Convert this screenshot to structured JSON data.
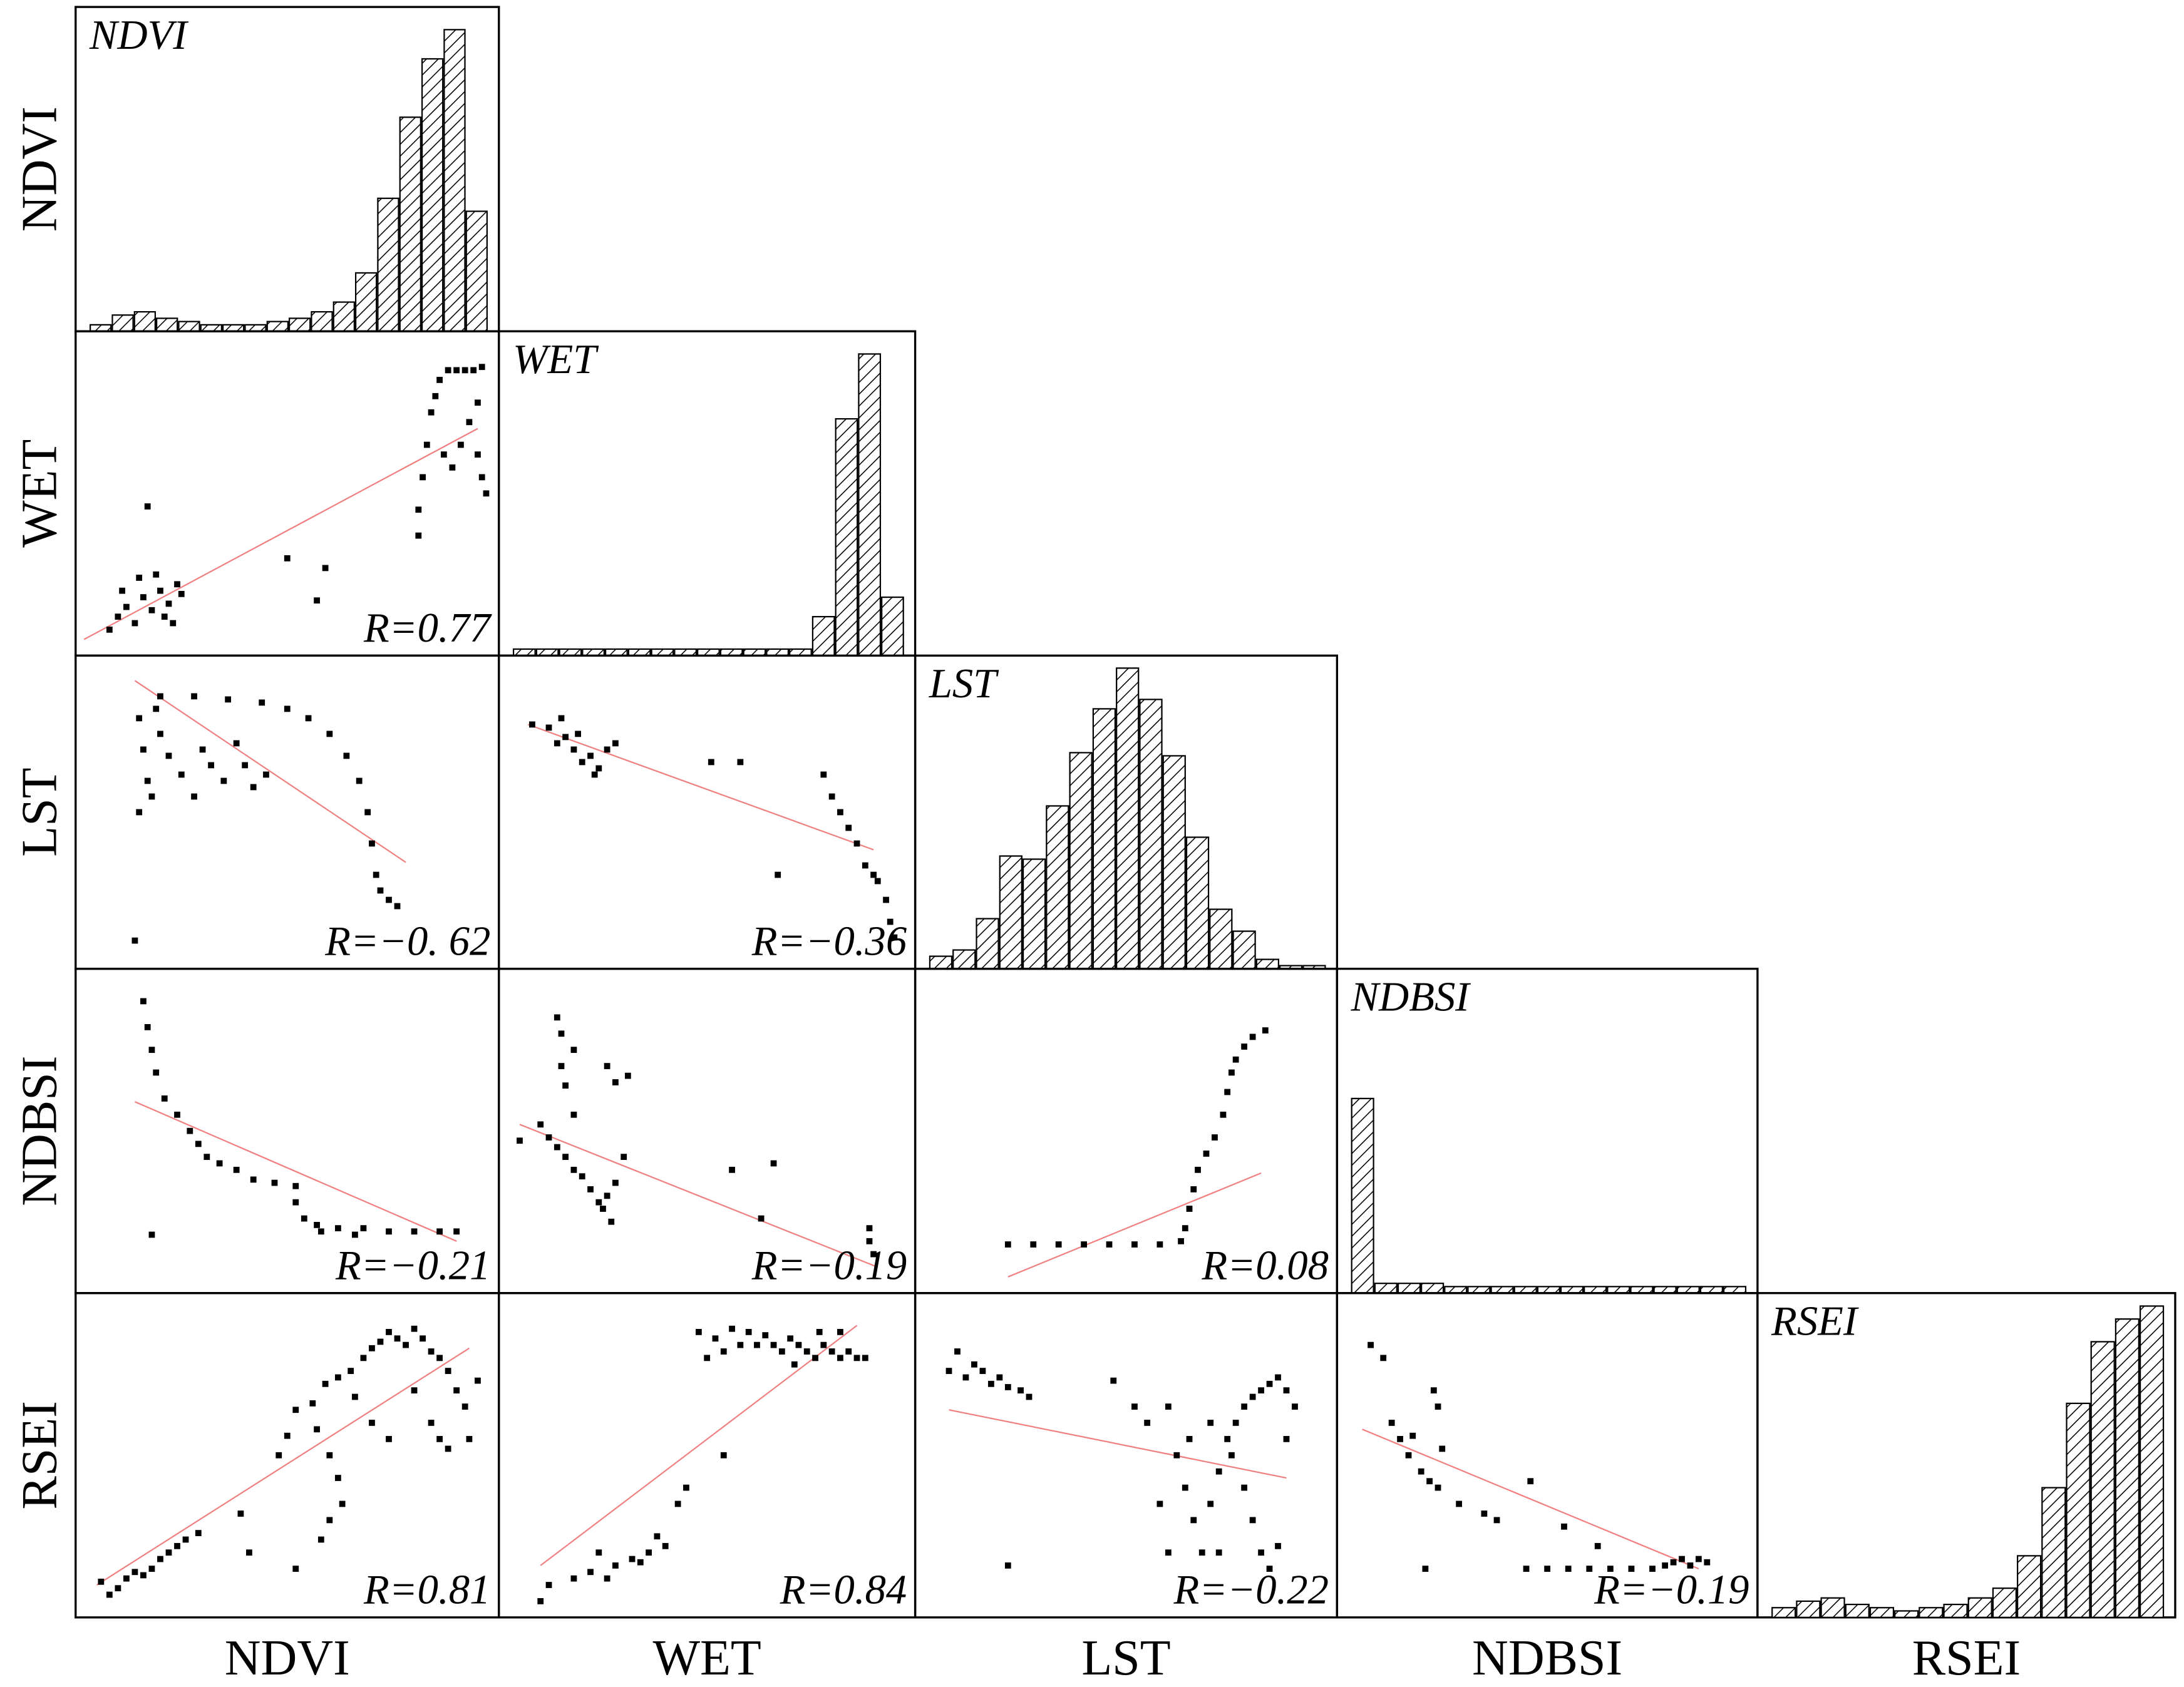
{
  "x_labels": [
    "NDVI",
    "WET",
    "LST",
    "NDBSI",
    "RSEI"
  ],
  "y_labels": [
    "NDVI",
    "WET",
    "LST",
    "NDBSI",
    "RSEI"
  ],
  "chart_data": [
    {
      "type": "bar",
      "title": "NDVI",
      "ylim": [
        0,
        100
      ],
      "values": [
        2,
        5,
        6,
        4,
        3,
        2,
        2,
        2,
        3,
        4,
        6,
        9,
        18,
        41,
        66,
        84,
        93,
        37
      ]
    },
    {
      "type": "scatter",
      "annotation": "R=0.77",
      "xlim": [
        0,
        100
      ],
      "ylim": [
        0,
        100
      ],
      "x": [
        8,
        10,
        12,
        14,
        16,
        18,
        20,
        22,
        24,
        11,
        15,
        19,
        21,
        23,
        25,
        17,
        50,
        59,
        57,
        81,
        81,
        82,
        83,
        84,
        85,
        86,
        88,
        90,
        92,
        94,
        96,
        95,
        93,
        91,
        89,
        87,
        96,
        95,
        97
      ],
      "y": [
        8,
        12,
        15,
        10,
        18,
        14,
        20,
        16,
        22,
        20,
        24,
        25,
        12,
        10,
        19,
        46,
        30,
        27,
        17,
        37,
        45,
        55,
        65,
        75,
        80,
        85,
        88,
        88,
        88,
        88,
        89,
        78,
        72,
        65,
        58,
        62,
        55,
        62,
        50
      ],
      "fit": {
        "color": "#f08080",
        "x": [
          2,
          95
        ],
        "y": [
          5,
          70
        ]
      }
    },
    {
      "type": "bar",
      "title": "WET",
      "ylim": [
        0,
        100
      ],
      "values": [
        2,
        2,
        2,
        2,
        2,
        2,
        2,
        2,
        2,
        2,
        2,
        2,
        2,
        12,
        73,
        93,
        18
      ]
    },
    {
      "type": "scatter",
      "annotation": "R=−0. 62",
      "xlim": [
        0,
        100
      ],
      "ylim": [
        0,
        100
      ],
      "x": [
        20,
        28,
        36,
        44,
        50,
        55,
        60,
        64,
        67,
        69,
        70,
        71,
        72,
        74,
        76,
        15,
        16,
        17,
        18,
        15,
        20,
        22,
        25,
        30,
        32,
        35,
        38,
        40,
        42,
        45,
        14,
        19,
        28
      ],
      "y": [
        87,
        87,
        86,
        85,
        83,
        80,
        75,
        68,
        60,
        50,
        40,
        30,
        25,
        22,
        20,
        80,
        70,
        60,
        55,
        50,
        75,
        68,
        62,
        70,
        65,
        60,
        72,
        65,
        58,
        62,
        9,
        83,
        55
      ],
      "fit": {
        "color": "#f08080",
        "x": [
          14,
          78
        ],
        "y": [
          92,
          34
        ]
      }
    },
    {
      "type": "scatter",
      "annotation": "R=−0.36",
      "xlim": [
        0,
        100
      ],
      "ylim": [
        0,
        100
      ],
      "x": [
        8,
        12,
        14,
        16,
        18,
        20,
        22,
        24,
        26,
        28,
        15,
        19,
        23,
        51,
        58,
        67,
        78,
        80,
        82,
        84,
        86,
        88,
        90,
        91,
        93,
        94,
        95
      ],
      "y": [
        78,
        77,
        72,
        74,
        70,
        66,
        68,
        64,
        70,
        72,
        80,
        75,
        62,
        66,
        66,
        30,
        62,
        55,
        50,
        45,
        40,
        33,
        30,
        28,
        22,
        15,
        10
      ],
      "fit": {
        "color": "#f08080",
        "x": [
          7,
          90
        ],
        "y": [
          78,
          38
        ]
      }
    },
    {
      "type": "bar",
      "title": "LST",
      "ylim": [
        0,
        100
      ],
      "values": [
        4,
        6,
        16,
        36,
        35,
        52,
        69,
        83,
        96,
        86,
        68,
        42,
        19,
        12,
        3,
        1,
        1
      ]
    },
    {
      "type": "scatter",
      "annotation": "R=−0.21",
      "xlim": [
        0,
        100
      ],
      "ylim": [
        0,
        100
      ],
      "x": [
        16,
        17,
        18,
        19,
        21,
        24,
        27,
        29,
        31,
        34,
        38,
        42,
        47,
        52,
        52,
        54,
        57,
        62,
        68,
        74,
        80,
        86,
        90,
        18,
        58,
        66
      ],
      "y": [
        90,
        82,
        75,
        68,
        60,
        55,
        50,
        46,
        42,
        40,
        38,
        35,
        34,
        33,
        28,
        23,
        21,
        20,
        20,
        19,
        19,
        19,
        19,
        18,
        19,
        18
      ],
      "fit": {
        "color": "#f08080",
        "x": [
          14,
          90
        ],
        "y": [
          59,
          16
        ]
      }
    },
    {
      "type": "scatter",
      "annotation": "R=−0.19",
      "xlim": [
        0,
        100
      ],
      "ylim": [
        0,
        100
      ],
      "x": [
        14,
        15,
        15,
        16,
        18,
        26,
        28,
        31,
        5,
        10,
        12,
        14,
        16,
        18,
        20,
        22,
        24,
        26,
        28,
        25,
        27,
        18,
        30,
        56,
        66,
        63,
        89,
        89,
        90
      ],
      "y": [
        85,
        80,
        70,
        64,
        75,
        70,
        65,
        67,
        47,
        52,
        48,
        45,
        42,
        38,
        36,
        32,
        28,
        30,
        34,
        26,
        22,
        55,
        42,
        38,
        40,
        23,
        20,
        16,
        12
      ],
      "fit": {
        "color": "#f08080",
        "x": [
          5,
          91
        ],
        "y": [
          52,
          8
        ]
      }
    },
    {
      "type": "scatter",
      "annotation": "R=0.08",
      "xlim": [
        0,
        100
      ],
      "ylim": [
        0,
        100
      ],
      "x": [
        22,
        28,
        34,
        40,
        46,
        52,
        58,
        63,
        64,
        65,
        66,
        67,
        69,
        71,
        73,
        74,
        75,
        76,
        78,
        80,
        83
      ],
      "y": [
        15,
        15,
        15,
        15,
        15,
        15,
        15,
        16,
        20,
        26,
        32,
        38,
        43,
        48,
        55,
        62,
        68,
        72,
        76,
        79,
        81
      ],
      "fit": {
        "color": "#f08080",
        "x": [
          22,
          82
        ],
        "y": [
          5,
          37
        ]
      }
    },
    {
      "type": "bar",
      "title": "NDBSI",
      "ylim": [
        0,
        100
      ],
      "values": [
        60,
        3,
        3,
        3,
        2,
        2,
        2,
        2,
        2,
        2,
        2,
        2,
        2,
        2,
        2,
        2,
        2
      ]
    },
    {
      "type": "scatter",
      "annotation": "R=0.81",
      "xlim": [
        0,
        100
      ],
      "ylim": [
        0,
        100
      ],
      "x": [
        6,
        8,
        10,
        12,
        14,
        16,
        18,
        20,
        22,
        24,
        26,
        29,
        39,
        41,
        52,
        58,
        60,
        63,
        62,
        60,
        57,
        52,
        56,
        59,
        62,
        65,
        68,
        70,
        72,
        74,
        76,
        78,
        80,
        82,
        84,
        86,
        88,
        90,
        92,
        84,
        86,
        88,
        80,
        66,
        70,
        74,
        50,
        48,
        95,
        93
      ],
      "y": [
        11,
        7,
        9,
        12,
        14,
        13,
        15,
        18,
        20,
        22,
        24,
        26,
        32,
        20,
        15,
        24,
        30,
        35,
        43,
        50,
        58,
        64,
        66,
        72,
        74,
        76,
        80,
        83,
        85,
        88,
        86,
        84,
        89,
        86,
        82,
        80,
        76,
        70,
        65,
        60,
        55,
        52,
        70,
        68,
        60,
        55,
        56,
        50,
        73,
        55
      ],
      "fit": {
        "color": "#f08080",
        "x": [
          5,
          93
        ],
        "y": [
          10,
          83
        ]
      }
    },
    {
      "type": "scatter",
      "annotation": "R=0.84",
      "xlim": [
        0,
        100
      ],
      "ylim": [
        0,
        100
      ],
      "x": [
        48,
        52,
        56,
        60,
        64,
        66,
        68,
        70,
        72,
        74,
        76,
        78,
        80,
        82,
        84,
        86,
        88,
        62,
        58,
        54,
        50,
        77,
        82,
        71,
        54,
        45,
        43,
        38,
        36,
        32,
        28,
        26,
        22,
        18,
        12,
        10,
        24,
        34,
        40
      ],
      "y": [
        88,
        86,
        89,
        88,
        87,
        84,
        82,
        86,
        84,
        82,
        80,
        84,
        82,
        80,
        82,
        80,
        80,
        84,
        84,
        82,
        80,
        88,
        88,
        78,
        50,
        40,
        35,
        25,
        20,
        18,
        16,
        12,
        14,
        12,
        10,
        5,
        20,
        17,
        22
      ],
      "fit": {
        "color": "#f08080",
        "x": [
          10,
          86
        ],
        "y": [
          16,
          90
        ]
      }
    },
    {
      "type": "scatter",
      "annotation": "R=−0.22",
      "xlim": [
        0,
        100
      ],
      "ylim": [
        0,
        100
      ],
      "x": [
        8,
        10,
        12,
        14,
        16,
        18,
        20,
        22,
        25,
        27,
        47,
        52,
        55,
        60,
        62,
        64,
        66,
        68,
        70,
        72,
        74,
        76,
        78,
        80,
        82,
        84,
        86,
        88,
        78,
        80,
        82,
        84,
        86,
        75,
        70,
        72,
        60,
        58,
        65,
        22,
        88,
        90
      ],
      "y": [
        76,
        82,
        74,
        78,
        76,
        72,
        74,
        71,
        70,
        68,
        73,
        65,
        60,
        65,
        50,
        40,
        30,
        20,
        35,
        45,
        55,
        60,
        65,
        68,
        70,
        72,
        74,
        70,
        40,
        30,
        20,
        15,
        22,
        50,
        60,
        20,
        20,
        35,
        55,
        16,
        55,
        65
      ],
      "fit": {
        "color": "#f08080",
        "x": [
          8,
          88
        ],
        "y": [
          64,
          43
        ]
      }
    },
    {
      "type": "scatter",
      "annotation": "R=−0.19",
      "xlim": [
        0,
        100
      ],
      "ylim": [
        0,
        100
      ],
      "x": [
        8,
        11,
        13,
        15,
        17,
        18,
        20,
        22,
        24,
        25,
        23,
        24,
        29,
        35,
        38,
        46,
        54,
        21,
        45,
        50,
        55,
        60,
        65,
        70,
        75,
        78,
        80,
        82,
        84,
        86,
        88,
        62
      ],
      "y": [
        84,
        80,
        60,
        55,
        50,
        56,
        45,
        42,
        40,
        52,
        70,
        65,
        35,
        32,
        30,
        42,
        28,
        15,
        15,
        15,
        15,
        15,
        15,
        15,
        15,
        16,
        17,
        18,
        16,
        18,
        17,
        22
      ],
      "fit": {
        "color": "#f08080",
        "x": [
          6,
          86
        ],
        "y": [
          58,
          15
        ]
      }
    },
    {
      "type": "bar",
      "title": "RSEI",
      "ylim": [
        0,
        100
      ],
      "values": [
        3,
        5,
        6,
        4,
        3,
        2,
        3,
        4,
        6,
        9,
        19,
        40,
        66,
        85,
        92,
        96
      ]
    }
  ]
}
